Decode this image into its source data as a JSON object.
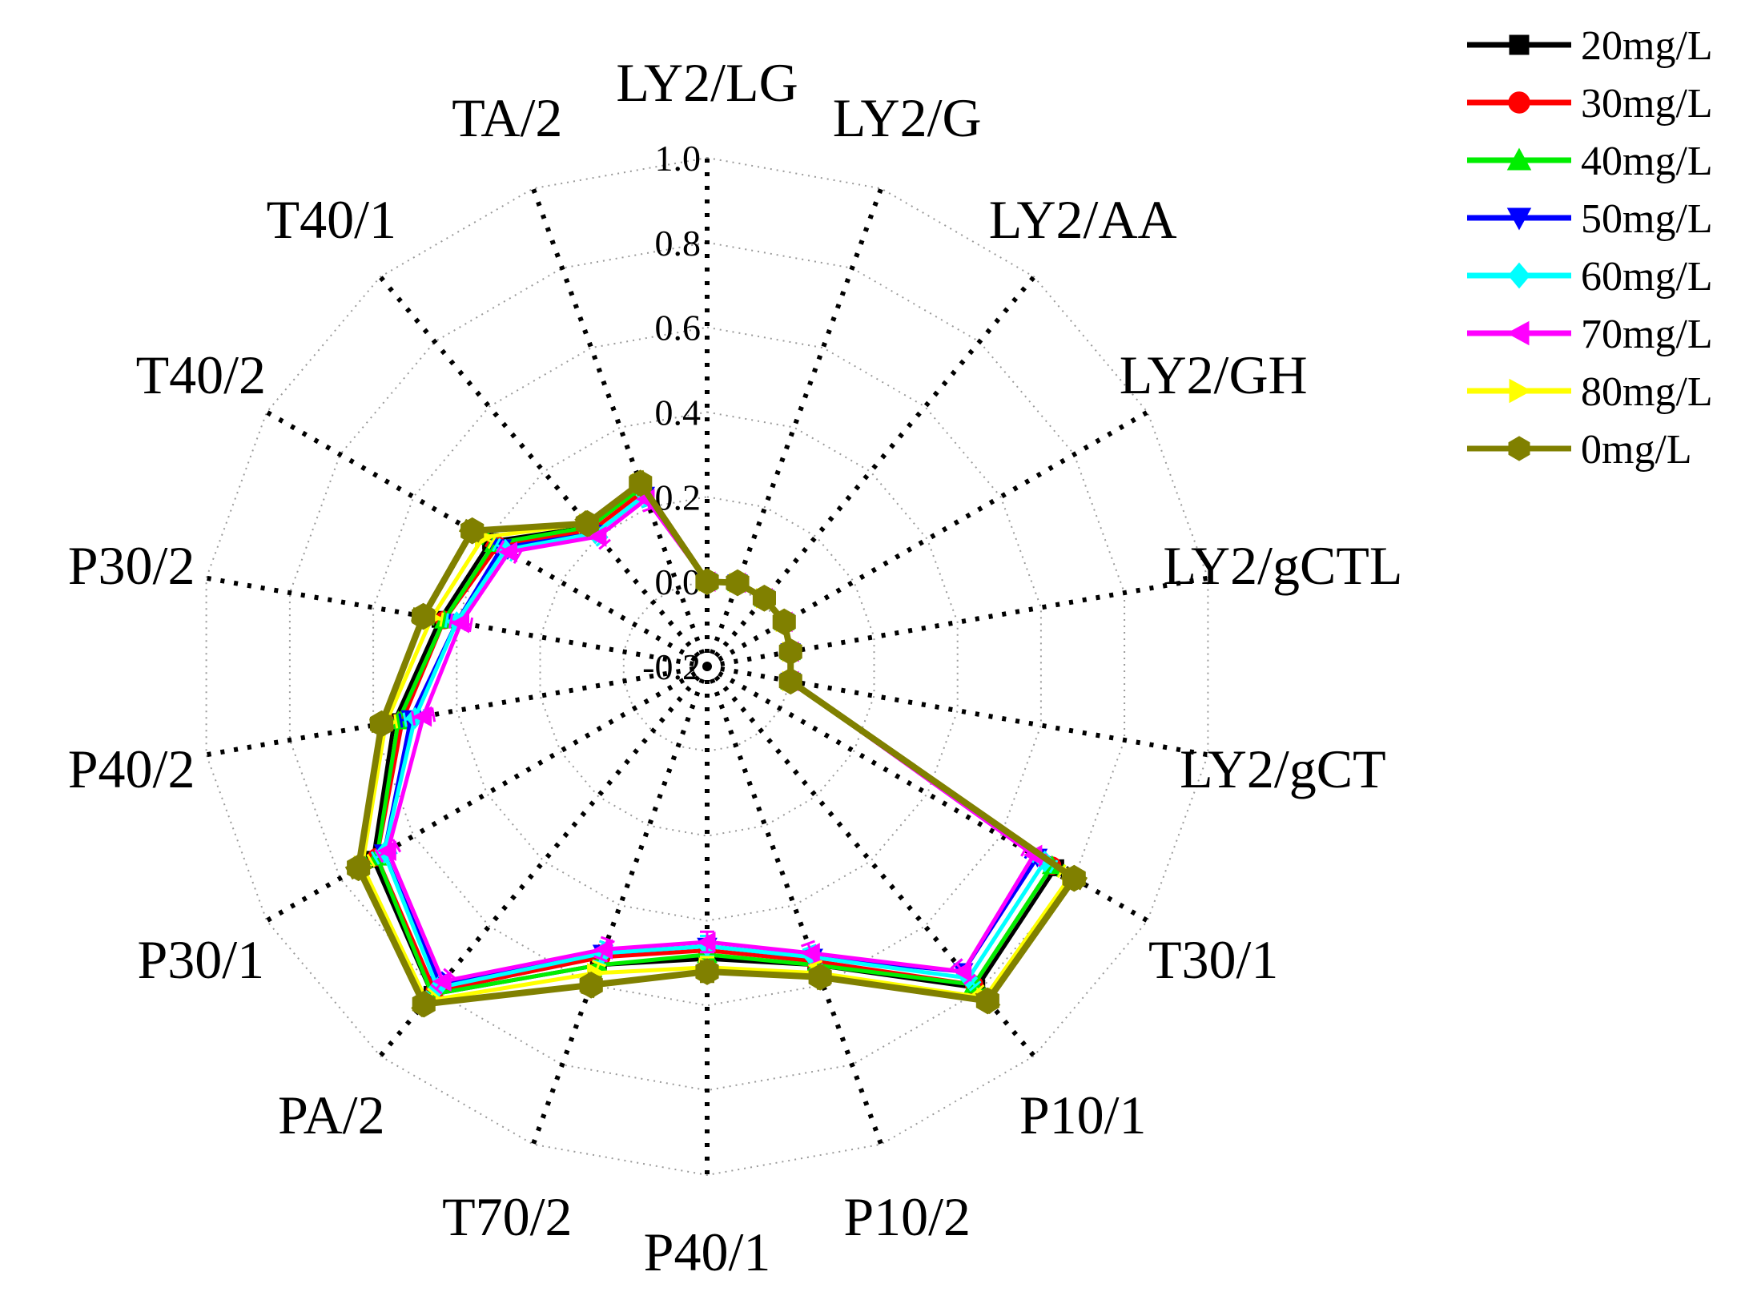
{
  "chart_data": {
    "type": "radar",
    "title": "",
    "categories": [
      "LY2/LG",
      "LY2/G",
      "LY2/AA",
      "LY2/GH",
      "LY2/gCTL",
      "LY2/gCT",
      "T30/1",
      "P10/1",
      "P10/2",
      "P40/1",
      "T70/2",
      "PA/2",
      "P30/1",
      "P40/2",
      "P30/2",
      "T40/2",
      "T40/1",
      "TA/2"
    ],
    "rlim": [
      -0.2,
      1.0
    ],
    "rticks": [
      "-0.2",
      "0.0",
      "0.2",
      "0.4",
      "0.6",
      "0.8",
      "1.0"
    ],
    "rtick_values": [
      -0.2,
      0.0,
      0.2,
      0.4,
      0.6,
      0.8,
      1.0
    ],
    "grid": true,
    "error_bars": true,
    "legend_position": "top-right",
    "series": [
      {
        "name": "20mg/L",
        "color": "#000000",
        "marker": "square",
        "values": [
          0.0,
          0.01,
          0.01,
          0.01,
          0.0,
          0.0,
          0.75,
          0.79,
          0.55,
          0.49,
          0.55,
          0.81,
          0.71,
          0.55,
          0.44,
          0.39,
          0.23,
          0.25
        ]
      },
      {
        "name": "30mg/L",
        "color": "#ff0000",
        "marker": "circle",
        "values": [
          0.0,
          0.01,
          0.01,
          0.01,
          0.0,
          0.0,
          0.74,
          0.78,
          0.54,
          0.47,
          0.53,
          0.8,
          0.7,
          0.53,
          0.43,
          0.37,
          0.22,
          0.24
        ]
      },
      {
        "name": "40mg/L",
        "color": "#00ee00",
        "marker": "triangle-up",
        "values": [
          0.0,
          0.01,
          0.01,
          0.01,
          0.0,
          0.0,
          0.74,
          0.78,
          0.55,
          0.48,
          0.55,
          0.81,
          0.7,
          0.54,
          0.43,
          0.38,
          0.23,
          0.25
        ]
      },
      {
        "name": "50mg/L",
        "color": "#0000ff",
        "marker": "triangle-down",
        "values": [
          0.0,
          0.01,
          0.01,
          0.01,
          0.0,
          0.0,
          0.7,
          0.74,
          0.53,
          0.46,
          0.52,
          0.78,
          0.68,
          0.51,
          0.4,
          0.36,
          0.21,
          0.23
        ]
      },
      {
        "name": "60mg/L",
        "color": "#00ffff",
        "marker": "diamond",
        "values": [
          0.0,
          0.01,
          0.01,
          0.01,
          0.0,
          0.0,
          0.72,
          0.76,
          0.53,
          0.46,
          0.52,
          0.79,
          0.68,
          0.5,
          0.4,
          0.35,
          0.21,
          0.23
        ]
      },
      {
        "name": "70mg/L",
        "color": "#ff00ff",
        "marker": "triangle-left",
        "values": [
          0.0,
          0.01,
          0.01,
          0.01,
          0.0,
          0.0,
          0.69,
          0.74,
          0.52,
          0.45,
          0.51,
          0.77,
          0.67,
          0.48,
          0.39,
          0.34,
          0.2,
          0.22
        ]
      },
      {
        "name": "80mg/L",
        "color": "#ffff00",
        "marker": "triangle-right",
        "values": [
          0.0,
          0.01,
          0.01,
          0.01,
          0.0,
          0.0,
          0.79,
          0.82,
          0.57,
          0.51,
          0.57,
          0.83,
          0.74,
          0.57,
          0.46,
          0.41,
          0.24,
          0.26
        ]
      },
      {
        "name": "0mg/L",
        "color": "#808000",
        "marker": "hexagon",
        "values": [
          0.0,
          0.01,
          0.01,
          0.01,
          0.0,
          0.0,
          0.8,
          0.83,
          0.58,
          0.52,
          0.6,
          0.84,
          0.75,
          0.58,
          0.48,
          0.44,
          0.24,
          0.26
        ]
      }
    ]
  }
}
